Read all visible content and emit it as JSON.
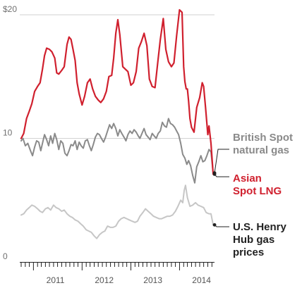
{
  "chart_data": {
    "type": "line",
    "title": "",
    "xlabel": "",
    "ylabel": "",
    "ylim": [
      0,
      20
    ],
    "xlim": [
      "2010-10-01",
      "2014-09-15"
    ],
    "y_ticks": [
      {
        "value": 0,
        "label": "0"
      },
      {
        "value": 10,
        "label": "10"
      },
      {
        "value": 20,
        "label": "$20"
      }
    ],
    "x_tick_labels": [
      {
        "date": "2011-06-15",
        "label": "2011"
      },
      {
        "date": "2012-06-15",
        "label": "2012"
      },
      {
        "date": "2013-06-15",
        "label": "2013"
      },
      {
        "date": "2014-06-15",
        "label": "2014"
      }
    ],
    "grid": "horizontal",
    "legend": "direct labels at right end of lines",
    "series": [
      {
        "name": "Asian Spot LNG",
        "name_lines": [
          "Asian",
          "Spot LNG"
        ],
        "color": "#d0202e",
        "x": [
          "2010-10-01",
          "2010-10-20",
          "2010-11-10",
          "2010-12-01",
          "2010-12-20",
          "2011-01-10",
          "2011-02-01",
          "2011-02-20",
          "2011-03-10",
          "2011-03-25",
          "2011-04-10",
          "2011-05-01",
          "2011-05-20",
          "2011-06-10",
          "2011-06-25",
          "2011-07-10",
          "2011-08-01",
          "2011-08-20",
          "2011-09-10",
          "2011-09-25",
          "2011-10-10",
          "2011-10-25",
          "2011-11-10",
          "2011-11-25",
          "2011-12-10",
          "2012-01-01",
          "2012-01-20",
          "2012-02-10",
          "2012-03-01",
          "2012-03-20",
          "2012-04-10",
          "2012-05-01",
          "2012-05-20",
          "2012-06-10",
          "2012-07-01",
          "2012-07-20",
          "2012-08-10",
          "2012-08-25",
          "2012-09-10",
          "2012-09-25",
          "2012-10-10",
          "2012-11-01",
          "2012-11-20",
          "2012-12-10",
          "2013-01-01",
          "2013-01-20",
          "2013-02-10",
          "2013-03-01",
          "2013-03-20",
          "2013-04-10",
          "2013-05-01",
          "2013-05-20",
          "2013-06-10",
          "2013-07-01",
          "2013-07-20",
          "2013-08-10",
          "2013-09-01",
          "2013-09-20",
          "2013-10-10",
          "2013-11-01",
          "2013-11-20",
          "2013-12-10",
          "2014-01-01",
          "2014-01-20",
          "2014-02-01",
          "2014-02-10",
          "2014-02-20",
          "2014-03-01",
          "2014-03-10",
          "2014-03-20",
          "2014-04-01",
          "2014-04-20",
          "2014-05-10",
          "2014-06-01",
          "2014-06-20",
          "2014-07-01",
          "2014-07-15",
          "2014-08-01",
          "2014-08-10",
          "2014-08-25",
          "2014-09-10"
        ],
        "y": [
          10.0,
          10.4,
          11.6,
          12.2,
          12.8,
          13.8,
          14.2,
          14.5,
          15.6,
          16.7,
          17.3,
          17.2,
          17.0,
          16.5,
          15.3,
          15.2,
          15.5,
          15.8,
          17.6,
          18.2,
          18.0,
          17.2,
          16.3,
          14.5,
          13.6,
          12.7,
          13.4,
          14.5,
          14.8,
          14.0,
          13.4,
          13.1,
          12.9,
          13.2,
          13.8,
          15.0,
          15.1,
          16.5,
          18.5,
          19.6,
          18.4,
          15.8,
          15.6,
          15.4,
          14.3,
          14.5,
          15.4,
          17.3,
          17.8,
          18.5,
          17.5,
          14.8,
          14.2,
          14.1,
          16.0,
          18.0,
          19.7,
          17.2,
          16.2,
          15.8,
          16.1,
          18.3,
          20.4,
          20.2,
          15.8,
          14.6,
          14.0,
          14.0,
          13.0,
          11.6,
          10.9,
          10.5,
          12.5,
          13.3,
          14.5,
          14.2,
          12.5,
          10.3,
          11.0,
          9.6,
          7.1
        ]
      },
      {
        "name": "British Spot natural gas",
        "name_lines": [
          "British Spot",
          "natural gas"
        ],
        "color": "#8a8a8a",
        "x": [
          "2010-10-01",
          "2010-10-15",
          "2010-11-01",
          "2010-11-20",
          "2010-12-10",
          "2010-12-25",
          "2011-01-10",
          "2011-01-25",
          "2011-02-10",
          "2011-02-25",
          "2011-03-10",
          "2011-03-25",
          "2011-04-10",
          "2011-04-25",
          "2011-05-10",
          "2011-05-25",
          "2011-06-10",
          "2011-06-25",
          "2011-07-10",
          "2011-07-25",
          "2011-08-10",
          "2011-08-25",
          "2011-09-10",
          "2011-09-25",
          "2011-10-10",
          "2011-10-25",
          "2011-11-10",
          "2011-11-25",
          "2011-12-10",
          "2011-12-25",
          "2012-01-10",
          "2012-01-25",
          "2012-02-10",
          "2012-02-25",
          "2012-03-10",
          "2012-03-25",
          "2012-04-10",
          "2012-04-25",
          "2012-05-10",
          "2012-05-25",
          "2012-06-10",
          "2012-06-25",
          "2012-07-10",
          "2012-07-25",
          "2012-08-10",
          "2012-08-25",
          "2012-09-10",
          "2012-09-25",
          "2012-10-10",
          "2012-10-25",
          "2012-11-10",
          "2012-11-25",
          "2012-12-10",
          "2012-12-25",
          "2013-01-10",
          "2013-01-25",
          "2013-02-10",
          "2013-02-25",
          "2013-03-10",
          "2013-03-25",
          "2013-04-10",
          "2013-04-25",
          "2013-05-10",
          "2013-05-25",
          "2013-06-10",
          "2013-06-25",
          "2013-07-10",
          "2013-07-25",
          "2013-08-10",
          "2013-08-25",
          "2013-09-10",
          "2013-09-25",
          "2013-10-10",
          "2013-10-25",
          "2013-11-10",
          "2013-11-25",
          "2013-12-10",
          "2013-12-25",
          "2014-01-10",
          "2014-01-25",
          "2014-02-10",
          "2014-02-25",
          "2014-03-10",
          "2014-03-25",
          "2014-04-10",
          "2014-04-25",
          "2014-05-10",
          "2014-05-25",
          "2014-06-10",
          "2014-06-25",
          "2014-07-10",
          "2014-07-25",
          "2014-08-10",
          "2014-08-25",
          "2014-09-10"
        ],
        "y": [
          9.8,
          10.0,
          9.4,
          9.6,
          9.0,
          8.6,
          9.3,
          9.8,
          9.7,
          9.0,
          9.6,
          10.3,
          9.9,
          9.4,
          10.2,
          9.6,
          10.4,
          9.9,
          9.1,
          9.8,
          9.6,
          8.8,
          8.6,
          9.0,
          9.5,
          9.4,
          9.8,
          9.1,
          9.7,
          9.4,
          9.2,
          9.8,
          9.9,
          9.4,
          9.0,
          9.5,
          10.1,
          10.4,
          10.3,
          10.0,
          9.7,
          10.1,
          10.6,
          11.1,
          10.8,
          11.2,
          10.8,
          10.2,
          10.7,
          10.4,
          10.1,
          9.8,
          10.3,
          10.6,
          10.4,
          10.7,
          10.5,
          10.2,
          10.0,
          10.4,
          10.8,
          10.3,
          10.1,
          9.9,
          10.4,
          10.2,
          10.0,
          10.4,
          10.6,
          11.3,
          11.0,
          10.9,
          11.6,
          11.2,
          11.1,
          10.9,
          10.6,
          10.3,
          9.6,
          8.7,
          8.4,
          7.9,
          8.2,
          7.8,
          7.0,
          6.4,
          7.7,
          8.1,
          8.6,
          8.1,
          8.2,
          8.6,
          9.1,
          8.9,
          7.2
        ]
      },
      {
        "name": "U.S. Henry Hub gas prices",
        "name_lines": [
          "U.S. Henry",
          "Hub gas",
          "prices"
        ],
        "color": "#c6c6c6",
        "x": [
          "2010-10-01",
          "2010-10-20",
          "2010-11-10",
          "2010-12-01",
          "2010-12-20",
          "2011-01-10",
          "2011-02-01",
          "2011-02-20",
          "2011-03-10",
          "2011-04-01",
          "2011-04-20",
          "2011-05-10",
          "2011-06-01",
          "2011-06-20",
          "2011-07-10",
          "2011-08-01",
          "2011-08-20",
          "2011-09-10",
          "2011-10-01",
          "2011-10-20",
          "2011-11-10",
          "2011-12-01",
          "2011-12-20",
          "2012-01-10",
          "2012-02-01",
          "2012-02-20",
          "2012-03-10",
          "2012-04-01",
          "2012-04-20",
          "2012-05-10",
          "2012-06-01",
          "2012-06-20",
          "2012-07-10",
          "2012-08-01",
          "2012-08-20",
          "2012-09-10",
          "2012-10-01",
          "2012-10-20",
          "2012-11-10",
          "2012-12-01",
          "2012-12-20",
          "2013-01-10",
          "2013-02-01",
          "2013-02-20",
          "2013-03-10",
          "2013-04-01",
          "2013-04-20",
          "2013-05-10",
          "2013-06-01",
          "2013-06-20",
          "2013-07-10",
          "2013-08-01",
          "2013-08-20",
          "2013-09-10",
          "2013-10-01",
          "2013-10-20",
          "2013-11-10",
          "2013-12-01",
          "2013-12-20",
          "2014-01-10",
          "2014-01-25",
          "2014-02-05",
          "2014-02-15",
          "2014-03-01",
          "2014-03-20",
          "2014-04-10",
          "2014-05-01",
          "2014-05-20",
          "2014-06-10",
          "2014-07-01",
          "2014-07-20",
          "2014-08-10",
          "2014-08-25",
          "2014-09-10"
        ],
        "y": [
          3.8,
          3.9,
          4.2,
          4.4,
          4.6,
          4.5,
          4.3,
          4.1,
          4.0,
          4.3,
          4.4,
          4.2,
          4.6,
          4.4,
          4.3,
          4.1,
          4.2,
          3.9,
          3.7,
          3.6,
          3.4,
          3.3,
          3.1,
          2.9,
          2.6,
          2.5,
          2.4,
          2.1,
          1.9,
          2.2,
          2.4,
          2.5,
          2.9,
          2.8,
          2.8,
          2.9,
          3.3,
          3.5,
          3.6,
          3.5,
          3.4,
          3.3,
          3.2,
          3.3,
          3.7,
          4.0,
          4.3,
          4.1,
          3.9,
          3.7,
          3.6,
          3.5,
          3.5,
          3.6,
          3.7,
          3.7,
          3.8,
          4.1,
          4.5,
          5.0,
          4.8,
          5.8,
          6.2,
          5.2,
          4.5,
          4.6,
          4.8,
          4.6,
          4.5,
          4.4,
          4.0,
          3.9,
          3.9,
          3.0
        ]
      }
    ]
  }
}
